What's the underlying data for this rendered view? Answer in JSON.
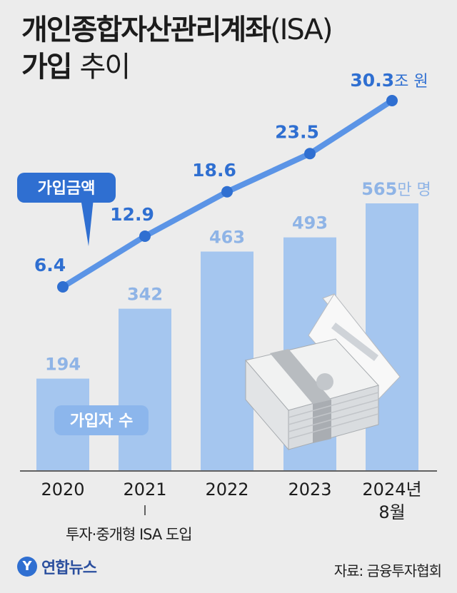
{
  "title": {
    "line1_main": "개인종합자산관리계좌",
    "line1_light": "(ISA)",
    "line2_main": "가입",
    "line2_light": "추이"
  },
  "note": "투자·중개형 ISA 도입",
  "source": "자료: 금융투자협회",
  "logo": {
    "mark": "Y",
    "name": "연합뉴스"
  },
  "colors": {
    "bar": "#a5c6ef",
    "line": "#5b94e6",
    "point": "#2f6fd1",
    "label_blue": "#2f6fd1",
    "bar_label": "#8fb4e6",
    "badge": "#2f6fd1"
  },
  "chart_data": {
    "type": "bar",
    "categories": [
      "2020",
      "2021",
      "2022",
      "2023",
      "2024년 8월"
    ],
    "category_lines": [
      [
        "2020"
      ],
      [
        "2021"
      ],
      [
        "2022"
      ],
      [
        "2023"
      ],
      [
        "2024년",
        "8월"
      ]
    ],
    "series": [
      {
        "name": "가입자 수",
        "type": "bar",
        "values": [
          194,
          342,
          463,
          493,
          565
        ],
        "labels": [
          "194",
          "342",
          "463",
          "493",
          "565"
        ],
        "unit": "만 명"
      },
      {
        "name": "가입금액",
        "type": "line",
        "values": [
          6.4,
          12.9,
          18.6,
          23.5,
          30.3
        ],
        "labels": [
          "6.4",
          "12.9",
          "18.6",
          "23.5",
          "30.3"
        ],
        "unit": "조 원"
      }
    ],
    "grid": false,
    "legend": "inline badges"
  }
}
